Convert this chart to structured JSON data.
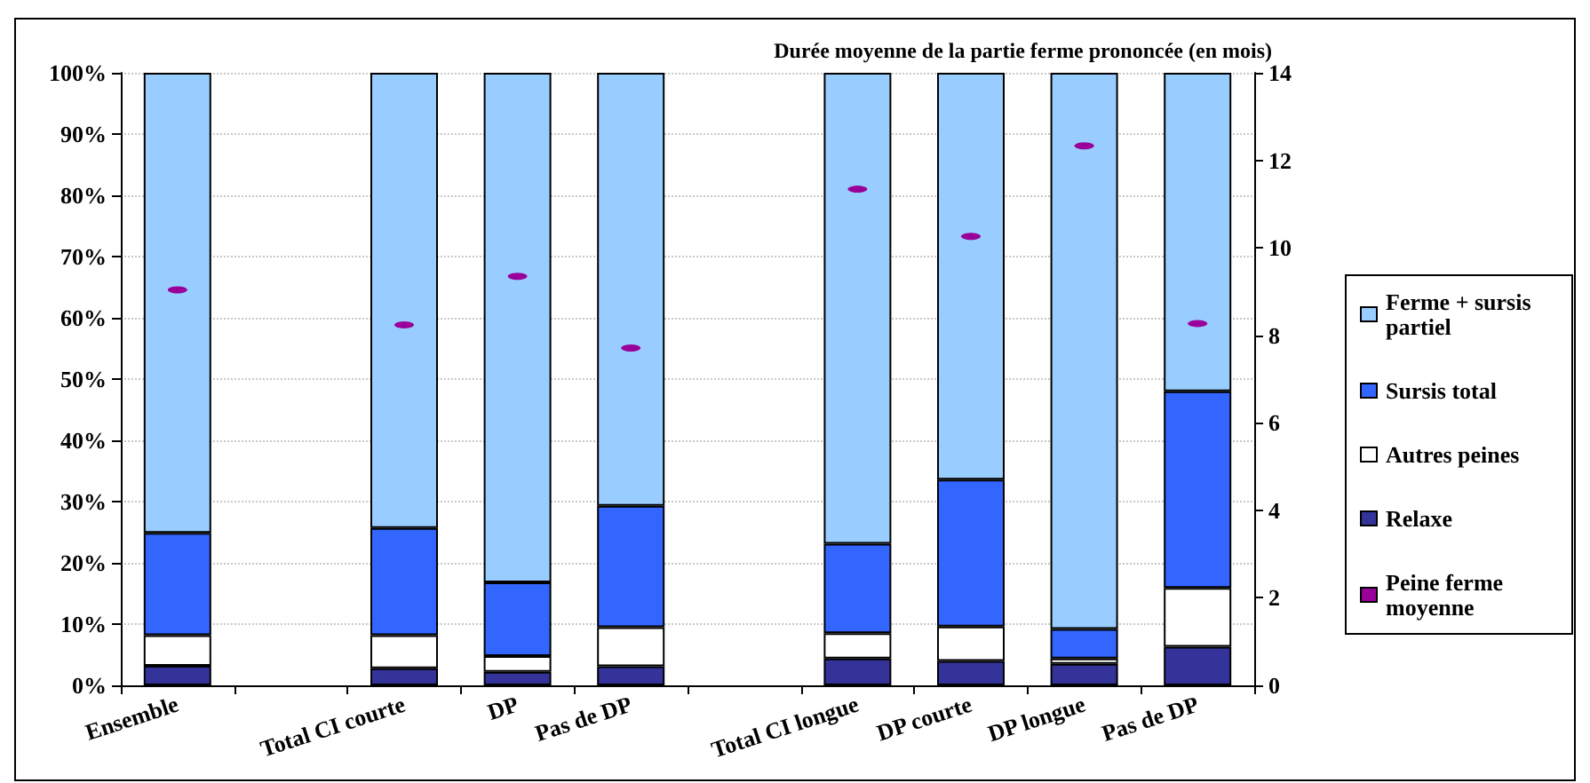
{
  "chart_data": {
    "type": "bar",
    "stacked": true,
    "categories": [
      "Ensemble",
      null,
      "Total CI courte",
      "DP",
      "Pas de DP",
      null,
      "Total CI longue",
      "DP courte",
      "DP longue",
      "Pas de DP"
    ],
    "y2label": "Durée moyenne de la partie ferme prononcée (en mois)",
    "series": [
      {
        "name": "Relaxe",
        "color": "#333399",
        "values": [
          3.2,
          null,
          2.8,
          2.2,
          3.1,
          null,
          4.4,
          4.0,
          3.5,
          6.3
        ]
      },
      {
        "name": "Autres peines",
        "color": "#ffffff",
        "values": [
          5.0,
          null,
          5.4,
          2.6,
          6.4,
          null,
          4.1,
          5.6,
          0.9,
          9.6
        ]
      },
      {
        "name": "Sursis total",
        "color": "#3366ff",
        "values": [
          16.7,
          null,
          17.5,
          12.0,
          19.8,
          null,
          14.6,
          24.0,
          4.8,
          32.1
        ]
      },
      {
        "name": "Ferme + sursis partiel",
        "color": "#99ccff",
        "values": [
          75.1,
          null,
          74.3,
          83.2,
          70.7,
          null,
          76.9,
          66.4,
          90.8,
          52.0
        ]
      },
      {
        "name": "Peine ferme moyenne",
        "type": "scatter",
        "axis": "y2",
        "color": "#990099",
        "values": [
          9.04,
          null,
          8.24,
          9.35,
          7.71,
          null,
          11.34,
          10.26,
          12.33,
          8.27
        ]
      }
    ],
    "ylim": [
      0,
      100
    ],
    "yticks": [
      {
        "value": 0,
        "label": "0%"
      },
      {
        "value": 10,
        "label": "10%"
      },
      {
        "value": 20,
        "label": "20%"
      },
      {
        "value": 30,
        "label": "30%"
      },
      {
        "value": 40,
        "label": "40%"
      },
      {
        "value": 50,
        "label": "50%"
      },
      {
        "value": 60,
        "label": "60%"
      },
      {
        "value": 70,
        "label": "70%"
      },
      {
        "value": 80,
        "label": "80%"
      },
      {
        "value": 90,
        "label": "90%"
      },
      {
        "value": 100,
        "label": "100%"
      }
    ],
    "y2lim": [
      0,
      14
    ],
    "y2ticks": [
      0,
      2,
      4,
      6,
      8,
      10,
      12,
      14
    ],
    "grid": "y",
    "legend": "right"
  }
}
